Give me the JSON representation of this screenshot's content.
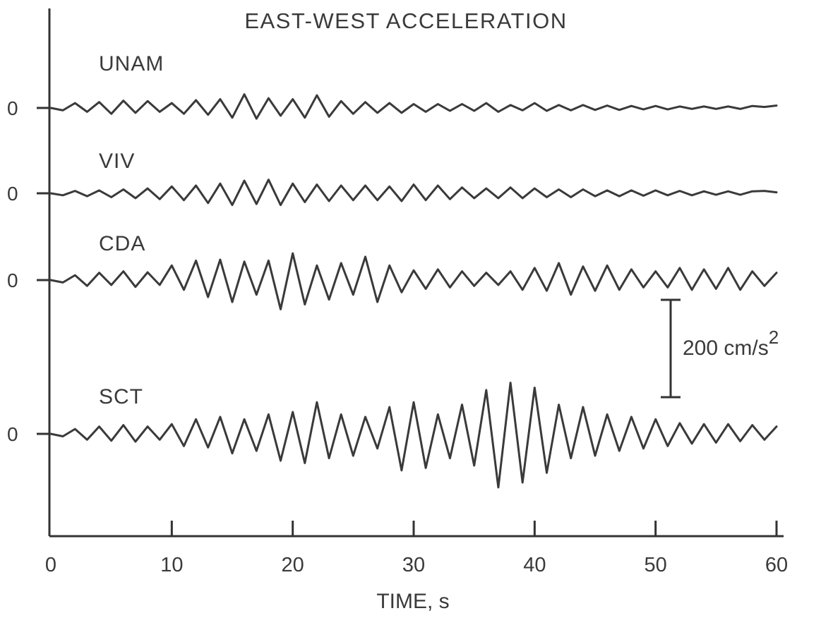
{
  "chart_data": {
    "type": "line",
    "title": "EAST-WEST ACCELERATION",
    "xlabel": "TIME, s",
    "ylabel": "",
    "xlim": [
      0,
      60
    ],
    "x_ticks": [
      "0",
      "10",
      "20",
      "30",
      "40",
      "50",
      "60"
    ],
    "zero_label": "0",
    "scale_bar": {
      "label": "200 cm/s",
      "superscript": "2",
      "value": 200,
      "units": "cm/s^2"
    },
    "grid": false,
    "legend": "none",
    "series": [
      {
        "name": "UNAM",
        "points": [
          [
            0,
            0
          ],
          [
            1,
            -5
          ],
          [
            2,
            10
          ],
          [
            3,
            -8
          ],
          [
            4,
            12
          ],
          [
            5,
            -12
          ],
          [
            6,
            15
          ],
          [
            7,
            -10
          ],
          [
            8,
            14
          ],
          [
            9,
            -8
          ],
          [
            10,
            10
          ],
          [
            11,
            -12
          ],
          [
            12,
            16
          ],
          [
            13,
            -14
          ],
          [
            14,
            18
          ],
          [
            15,
            -20
          ],
          [
            16,
            28
          ],
          [
            17,
            -22
          ],
          [
            18,
            20
          ],
          [
            19,
            -16
          ],
          [
            20,
            18
          ],
          [
            21,
            -20
          ],
          [
            22,
            26
          ],
          [
            23,
            -18
          ],
          [
            24,
            14
          ],
          [
            25,
            -12
          ],
          [
            26,
            12
          ],
          [
            27,
            -10
          ],
          [
            28,
            10
          ],
          [
            29,
            -10
          ],
          [
            30,
            8
          ],
          [
            31,
            -8
          ],
          [
            32,
            8
          ],
          [
            33,
            -6
          ],
          [
            34,
            8
          ],
          [
            35,
            -6
          ],
          [
            36,
            10
          ],
          [
            37,
            -8
          ],
          [
            38,
            6
          ],
          [
            39,
            -5
          ],
          [
            40,
            10
          ],
          [
            41,
            -6
          ],
          [
            42,
            6
          ],
          [
            43,
            -5
          ],
          [
            44,
            6
          ],
          [
            45,
            -4
          ],
          [
            46,
            5
          ],
          [
            47,
            -4
          ],
          [
            48,
            4
          ],
          [
            49,
            -3
          ],
          [
            50,
            4
          ],
          [
            51,
            -3
          ],
          [
            52,
            3
          ],
          [
            53,
            -2
          ],
          [
            54,
            3
          ],
          [
            55,
            -2
          ],
          [
            56,
            3
          ],
          [
            57,
            -2
          ],
          [
            58,
            4
          ],
          [
            59,
            2
          ],
          [
            60,
            5
          ]
        ]
      },
      {
        "name": "VIV",
        "points": [
          [
            0,
            0
          ],
          [
            1,
            -4
          ],
          [
            2,
            5
          ],
          [
            3,
            -6
          ],
          [
            4,
            6
          ],
          [
            5,
            -8
          ],
          [
            6,
            8
          ],
          [
            7,
            -10
          ],
          [
            8,
            10
          ],
          [
            9,
            -12
          ],
          [
            10,
            14
          ],
          [
            11,
            -14
          ],
          [
            12,
            16
          ],
          [
            13,
            -20
          ],
          [
            14,
            20
          ],
          [
            15,
            -24
          ],
          [
            16,
            26
          ],
          [
            17,
            -22
          ],
          [
            18,
            28
          ],
          [
            19,
            -24
          ],
          [
            20,
            20
          ],
          [
            21,
            -18
          ],
          [
            22,
            18
          ],
          [
            23,
            -16
          ],
          [
            24,
            16
          ],
          [
            25,
            -14
          ],
          [
            26,
            16
          ],
          [
            27,
            -14
          ],
          [
            28,
            14
          ],
          [
            29,
            -16
          ],
          [
            30,
            18
          ],
          [
            31,
            -14
          ],
          [
            32,
            16
          ],
          [
            33,
            -12
          ],
          [
            34,
            12
          ],
          [
            35,
            -10
          ],
          [
            36,
            10
          ],
          [
            37,
            -10
          ],
          [
            38,
            12
          ],
          [
            39,
            -10
          ],
          [
            40,
            10
          ],
          [
            41,
            -8
          ],
          [
            42,
            8
          ],
          [
            43,
            -8
          ],
          [
            44,
            8
          ],
          [
            45,
            -6
          ],
          [
            46,
            6
          ],
          [
            47,
            -6
          ],
          [
            48,
            6
          ],
          [
            49,
            -5
          ],
          [
            50,
            6
          ],
          [
            51,
            -4
          ],
          [
            52,
            5
          ],
          [
            53,
            -4
          ],
          [
            54,
            4
          ],
          [
            55,
            -3
          ],
          [
            56,
            4
          ],
          [
            57,
            -3
          ],
          [
            58,
            4
          ],
          [
            59,
            5
          ],
          [
            60,
            2
          ]
        ]
      },
      {
        "name": "CDA",
        "points": [
          [
            0,
            0
          ],
          [
            1,
            -5
          ],
          [
            2,
            10
          ],
          [
            3,
            -12
          ],
          [
            4,
            15
          ],
          [
            5,
            -10
          ],
          [
            6,
            18
          ],
          [
            7,
            -14
          ],
          [
            8,
            16
          ],
          [
            9,
            -10
          ],
          [
            10,
            30
          ],
          [
            11,
            -20
          ],
          [
            12,
            40
          ],
          [
            13,
            -35
          ],
          [
            14,
            42
          ],
          [
            15,
            -45
          ],
          [
            16,
            38
          ],
          [
            17,
            -30
          ],
          [
            18,
            40
          ],
          [
            19,
            -60
          ],
          [
            20,
            55
          ],
          [
            21,
            -50
          ],
          [
            22,
            30
          ],
          [
            23,
            -40
          ],
          [
            24,
            35
          ],
          [
            25,
            -30
          ],
          [
            26,
            48
          ],
          [
            27,
            -45
          ],
          [
            28,
            30
          ],
          [
            29,
            -25
          ],
          [
            30,
            20
          ],
          [
            31,
            -18
          ],
          [
            32,
            22
          ],
          [
            33,
            -15
          ],
          [
            34,
            18
          ],
          [
            35,
            -12
          ],
          [
            36,
            15
          ],
          [
            37,
            -10
          ],
          [
            38,
            18
          ],
          [
            39,
            -20
          ],
          [
            40,
            25
          ],
          [
            41,
            -22
          ],
          [
            42,
            35
          ],
          [
            43,
            -30
          ],
          [
            44,
            28
          ],
          [
            45,
            -22
          ],
          [
            46,
            30
          ],
          [
            47,
            -20
          ],
          [
            48,
            22
          ],
          [
            49,
            -15
          ],
          [
            50,
            18
          ],
          [
            51,
            -15
          ],
          [
            52,
            25
          ],
          [
            53,
            -20
          ],
          [
            54,
            22
          ],
          [
            55,
            -18
          ],
          [
            56,
            25
          ],
          [
            57,
            -20
          ],
          [
            58,
            18
          ],
          [
            59,
            -12
          ],
          [
            60,
            15
          ]
        ]
      },
      {
        "name": "SCT",
        "points": [
          [
            0,
            0
          ],
          [
            1,
            -5
          ],
          [
            2,
            10
          ],
          [
            3,
            -12
          ],
          [
            4,
            15
          ],
          [
            5,
            -14
          ],
          [
            6,
            18
          ],
          [
            7,
            -16
          ],
          [
            8,
            15
          ],
          [
            9,
            -12
          ],
          [
            10,
            20
          ],
          [
            11,
            -25
          ],
          [
            12,
            30
          ],
          [
            13,
            -28
          ],
          [
            14,
            35
          ],
          [
            15,
            -40
          ],
          [
            16,
            30
          ],
          [
            17,
            -35
          ],
          [
            18,
            40
          ],
          [
            19,
            -55
          ],
          [
            20,
            45
          ],
          [
            21,
            -60
          ],
          [
            22,
            65
          ],
          [
            23,
            -50
          ],
          [
            24,
            40
          ],
          [
            25,
            -45
          ],
          [
            26,
            35
          ],
          [
            27,
            -30
          ],
          [
            28,
            55
          ],
          [
            29,
            -75
          ],
          [
            30,
            65
          ],
          [
            31,
            -70
          ],
          [
            32,
            40
          ],
          [
            33,
            -50
          ],
          [
            34,
            60
          ],
          [
            35,
            -65
          ],
          [
            36,
            90
          ],
          [
            37,
            -110
          ],
          [
            38,
            105
          ],
          [
            39,
            -100
          ],
          [
            40,
            95
          ],
          [
            41,
            -80
          ],
          [
            42,
            60
          ],
          [
            43,
            -50
          ],
          [
            44,
            55
          ],
          [
            45,
            -45
          ],
          [
            46,
            40
          ],
          [
            47,
            -35
          ],
          [
            48,
            35
          ],
          [
            49,
            -30
          ],
          [
            50,
            30
          ],
          [
            51,
            -25
          ],
          [
            52,
            22
          ],
          [
            53,
            -20
          ],
          [
            54,
            20
          ],
          [
            55,
            -18
          ],
          [
            56,
            20
          ],
          [
            57,
            -15
          ],
          [
            58,
            18
          ],
          [
            59,
            -12
          ],
          [
            60,
            15
          ]
        ]
      }
    ]
  }
}
